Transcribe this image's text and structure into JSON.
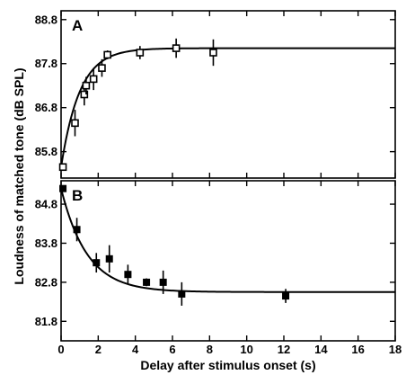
{
  "chart_data": [
    {
      "type": "scatter",
      "panel_label": "A",
      "marker": "open-square",
      "fit_curve": "exponential rise",
      "xlim": [
        0,
        18
      ],
      "ylim": [
        85.2,
        89.0
      ],
      "yticks": [
        "85.8",
        "86.8",
        "87.8",
        "88.8"
      ],
      "points": [
        {
          "x": 0.1,
          "y": 85.45,
          "err": 0.0
        },
        {
          "x": 0.75,
          "y": 86.45,
          "err": 0.3
        },
        {
          "x": 1.25,
          "y": 87.1,
          "err": 0.25
        },
        {
          "x": 1.35,
          "y": 87.3,
          "err": 0.2
        },
        {
          "x": 1.75,
          "y": 87.45,
          "err": 0.25
        },
        {
          "x": 2.2,
          "y": 87.7,
          "err": 0.2
        },
        {
          "x": 2.5,
          "y": 88.0,
          "err": 0.1
        },
        {
          "x": 4.25,
          "y": 88.05,
          "err": 0.15
        },
        {
          "x": 6.2,
          "y": 88.15,
          "err": 0.22
        },
        {
          "x": 8.2,
          "y": 88.05,
          "err": 0.3
        }
      ],
      "fit": {
        "asymptote": 88.15,
        "start": 85.45,
        "tau": 1.0
      }
    },
    {
      "type": "scatter",
      "panel_label": "B",
      "marker": "filled-square",
      "fit_curve": "exponential decay",
      "xlim": [
        0,
        18
      ],
      "ylim": [
        81.3,
        85.4
      ],
      "yticks": [
        "81.8",
        "82.8",
        "83.8",
        "84.8"
      ],
      "points": [
        {
          "x": 0.1,
          "y": 85.2,
          "err": 0.0
        },
        {
          "x": 0.85,
          "y": 84.15,
          "err": 0.3
        },
        {
          "x": 1.9,
          "y": 83.3,
          "err": 0.25
        },
        {
          "x": 2.6,
          "y": 83.4,
          "err": 0.35
        },
        {
          "x": 3.6,
          "y": 83.0,
          "err": 0.25
        },
        {
          "x": 4.6,
          "y": 82.8,
          "err": 0.1
        },
        {
          "x": 5.5,
          "y": 82.8,
          "err": 0.3
        },
        {
          "x": 6.5,
          "y": 82.5,
          "err": 0.3
        },
        {
          "x": 12.1,
          "y": 82.45,
          "err": 0.18
        }
      ],
      "fit": {
        "asymptote": 82.55,
        "start": 85.2,
        "tau": 1.4
      }
    }
  ],
  "axes": {
    "ylabel": "Loudness of matched tone (dB SPL)",
    "xlabel": "Delay after stimulus onset (s)",
    "xticks": [
      "0",
      "2",
      "4",
      "6",
      "8",
      "10",
      "12",
      "14",
      "16",
      "18"
    ]
  }
}
